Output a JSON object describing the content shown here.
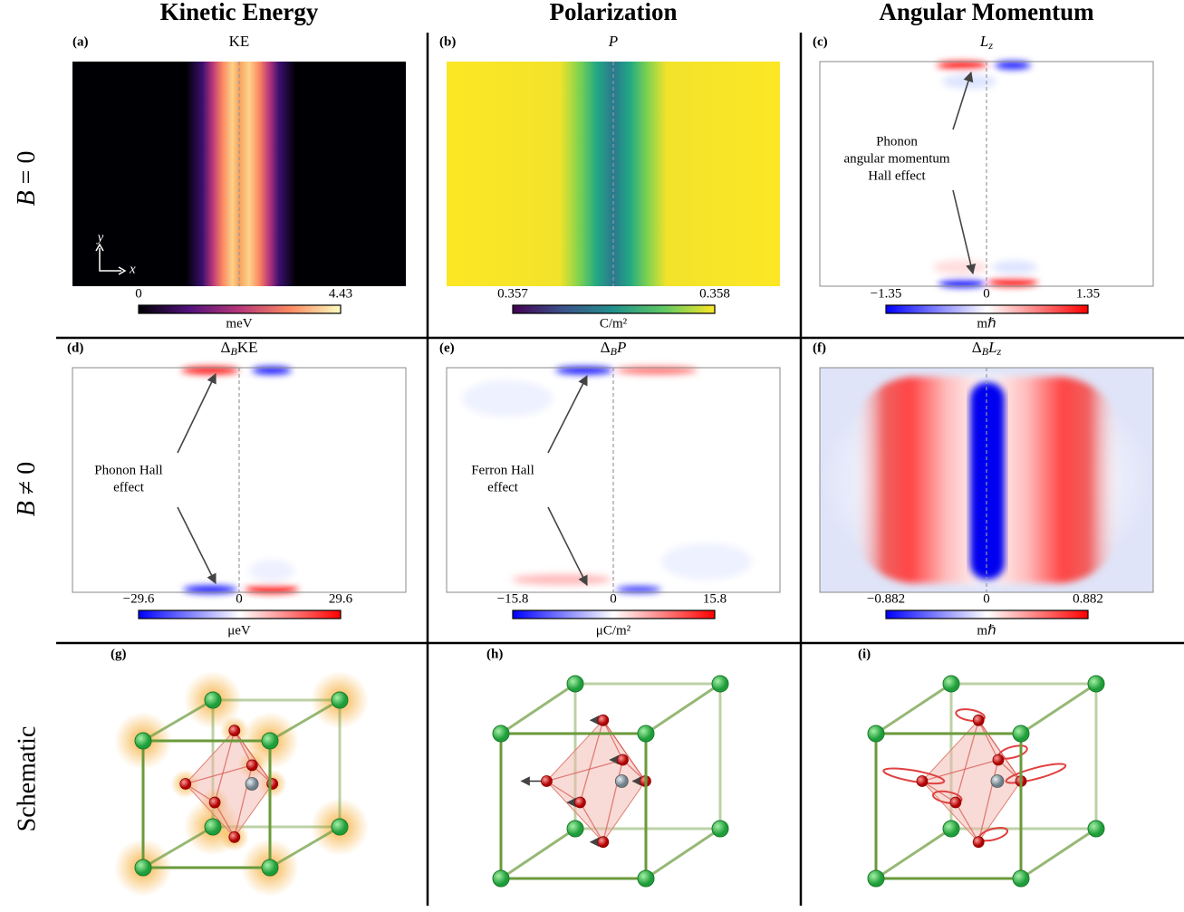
{
  "columns": [
    "Kinetic Energy",
    "Polarization",
    "Angular Momentum"
  ],
  "rows": [
    {
      "var": "B",
      "rest": " = 0"
    },
    {
      "var": "B",
      "rest": " ≠ 0"
    },
    {
      "label": "Schematic"
    }
  ],
  "panels": [
    {
      "tag": "(a)",
      "title": "KE",
      "colorbar": {
        "ticks": [
          "0",
          "4.43"
        ],
        "unit": "meV"
      },
      "axes": {
        "y": "y",
        "x": "x"
      }
    },
    {
      "tag": "(b)",
      "title": "P",
      "colorbar": {
        "ticks": [
          "0.357",
          "0.358"
        ],
        "unit": "C/m²"
      }
    },
    {
      "tag": "(c)",
      "title": {
        "main": "L",
        "sub": "z"
      },
      "colorbar": {
        "ticks": [
          "−1.35",
          "0",
          "1.35"
        ],
        "unit": "mℏ"
      },
      "annotation": [
        "Phonon",
        "angular momentum",
        "Hall effect"
      ]
    },
    {
      "tag": "(d)",
      "title": {
        "delta": "Δ",
        "sub": "B",
        "main": "KE"
      },
      "colorbar": {
        "ticks": [
          "−29.6",
          "0",
          "29.6"
        ],
        "unit": "μeV"
      },
      "annotation": [
        "Phonon Hall",
        "effect"
      ]
    },
    {
      "tag": "(e)",
      "title": {
        "delta": "Δ",
        "sub": "B",
        "main": "P"
      },
      "colorbar": {
        "ticks": [
          "−15.8",
          "0",
          "15.8"
        ],
        "unit": "μC/m²"
      },
      "annotation": [
        "Ferron Hall",
        "effect"
      ]
    },
    {
      "tag": "(f)",
      "title": {
        "delta": "Δ",
        "sub": "B",
        "main": "L",
        "sub2": "z"
      },
      "colorbar": {
        "ticks": [
          "−0.882",
          "0",
          "0.882"
        ],
        "unit": "mℏ"
      }
    },
    {
      "tag": "(g)"
    },
    {
      "tag": "(h)"
    },
    {
      "tag": "(i)"
    }
  ]
}
